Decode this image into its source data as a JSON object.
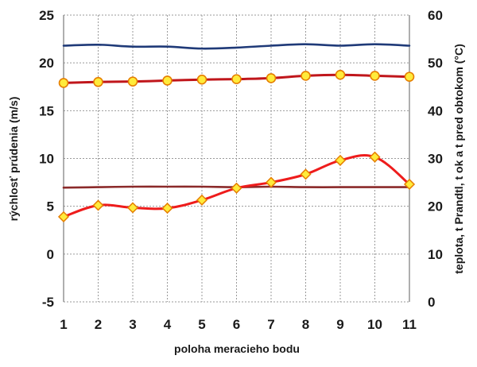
{
  "chart_data": {
    "type": "line",
    "x": [
      1,
      2,
      3,
      4,
      5,
      6,
      7,
      8,
      9,
      10,
      11
    ],
    "xlabel": "poloha meracieho bodu",
    "ylabel": "rýchlosť prúdenia (m/s)",
    "y2label": "teplota, t Prandtl, t ok a t pred obtokom (°C)",
    "ylim": [
      -5,
      25
    ],
    "y2lim": [
      0,
      60
    ],
    "y_ticks": [
      "-5",
      "0",
      "5",
      "10",
      "15",
      "20",
      "25"
    ],
    "y2_ticks": [
      "0",
      "10",
      "20",
      "30",
      "40",
      "50",
      "60"
    ],
    "x_ticks": [
      "1",
      "2",
      "3",
      "4",
      "5",
      "6",
      "7",
      "8",
      "9",
      "10",
      "11"
    ],
    "grid": true,
    "series": [
      {
        "axis": "left",
        "color": "#1f3a78",
        "marker": "none",
        "smooth": true,
        "values": [
          21.8,
          21.9,
          21.7,
          21.7,
          21.5,
          21.6,
          21.8,
          21.95,
          21.8,
          21.95,
          21.8
        ]
      },
      {
        "axis": "left",
        "color": "#c0161b",
        "marker": "circle",
        "smooth": true,
        "values": [
          17.9,
          18.0,
          18.05,
          18.15,
          18.25,
          18.3,
          18.4,
          18.65,
          18.75,
          18.65,
          18.55
        ]
      },
      {
        "axis": "left",
        "color": "#8b2a2a",
        "marker": "none",
        "smooth": true,
        "values": [
          6.95,
          7.0,
          7.05,
          7.05,
          7.05,
          7.0,
          7.05,
          7.0,
          7.0,
          7.0,
          7.0
        ]
      },
      {
        "axis": "left",
        "color": "#ee1c1c",
        "marker": "diamond",
        "smooth": true,
        "values": [
          3.9,
          5.1,
          4.85,
          4.8,
          5.65,
          6.9,
          7.5,
          8.35,
          9.8,
          10.15,
          7.3
        ]
      }
    ]
  }
}
